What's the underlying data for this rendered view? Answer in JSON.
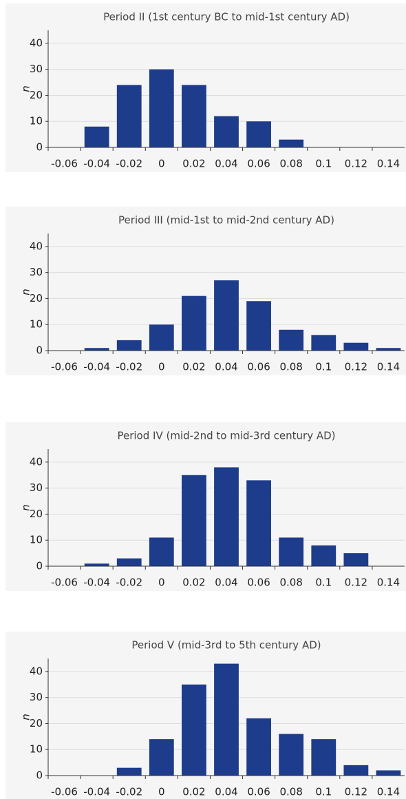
{
  "chart_data": [
    {
      "type": "bar",
      "title": "Period II (1st century BC to mid-1st century AD)",
      "y_label": "n",
      "categories": [
        "-0.06",
        "-0.04",
        "-0.02",
        "0",
        "0.02",
        "0.04",
        "0.06",
        "0.08",
        "0.1",
        "0.12",
        "0.14"
      ],
      "values": [
        0,
        8,
        24,
        30,
        24,
        12,
        10,
        3,
        0,
        0,
        0
      ],
      "color": "#1e3c8c",
      "ylim": [
        0,
        45
      ],
      "yticks": [
        0,
        10,
        20,
        30,
        40
      ],
      "grid": true
    },
    {
      "type": "bar",
      "title": "Period III (mid-1st to mid-2nd century AD)",
      "y_label": "n",
      "categories": [
        "-0.06",
        "-0.04",
        "-0.02",
        "0",
        "0.02",
        "0.04",
        "0.06",
        "0.08",
        "0.1",
        "0.12",
        "0.14"
      ],
      "values": [
        0,
        1,
        4,
        10,
        21,
        27,
        19,
        8,
        6,
        3,
        1
      ],
      "color": "#1e3c8c",
      "ylim": [
        0,
        45
      ],
      "yticks": [
        0,
        10,
        20,
        30,
        40
      ],
      "grid": true
    },
    {
      "type": "bar",
      "title": "Period IV (mid-2nd to mid-3rd century AD)",
      "y_label": "n",
      "categories": [
        "-0.06",
        "-0.04",
        "-0.02",
        "0",
        "0.02",
        "0.04",
        "0.06",
        "0.08",
        "0.1",
        "0.12",
        "0.14"
      ],
      "values": [
        0,
        1,
        3,
        11,
        35,
        38,
        33,
        11,
        8,
        5,
        0
      ],
      "color": "#1e3c8c",
      "ylim": [
        0,
        45
      ],
      "yticks": [
        0,
        10,
        20,
        30,
        40
      ],
      "grid": true
    },
    {
      "type": "bar",
      "title": "Period  V (mid-3rd to 5th century AD)",
      "y_label": "n",
      "categories": [
        "-0.06",
        "-0.04",
        "-0.02",
        "0",
        "0.02",
        "0.04",
        "0.06",
        "0.08",
        "0.1",
        "0.12",
        "0.14"
      ],
      "values": [
        0,
        0,
        3,
        14,
        35,
        43,
        22,
        16,
        14,
        4,
        2
      ],
      "color": "#1e3c8c",
      "ylim": [
        0,
        45
      ],
      "yticks": [
        0,
        10,
        20,
        30,
        40
      ],
      "grid": true
    }
  ]
}
